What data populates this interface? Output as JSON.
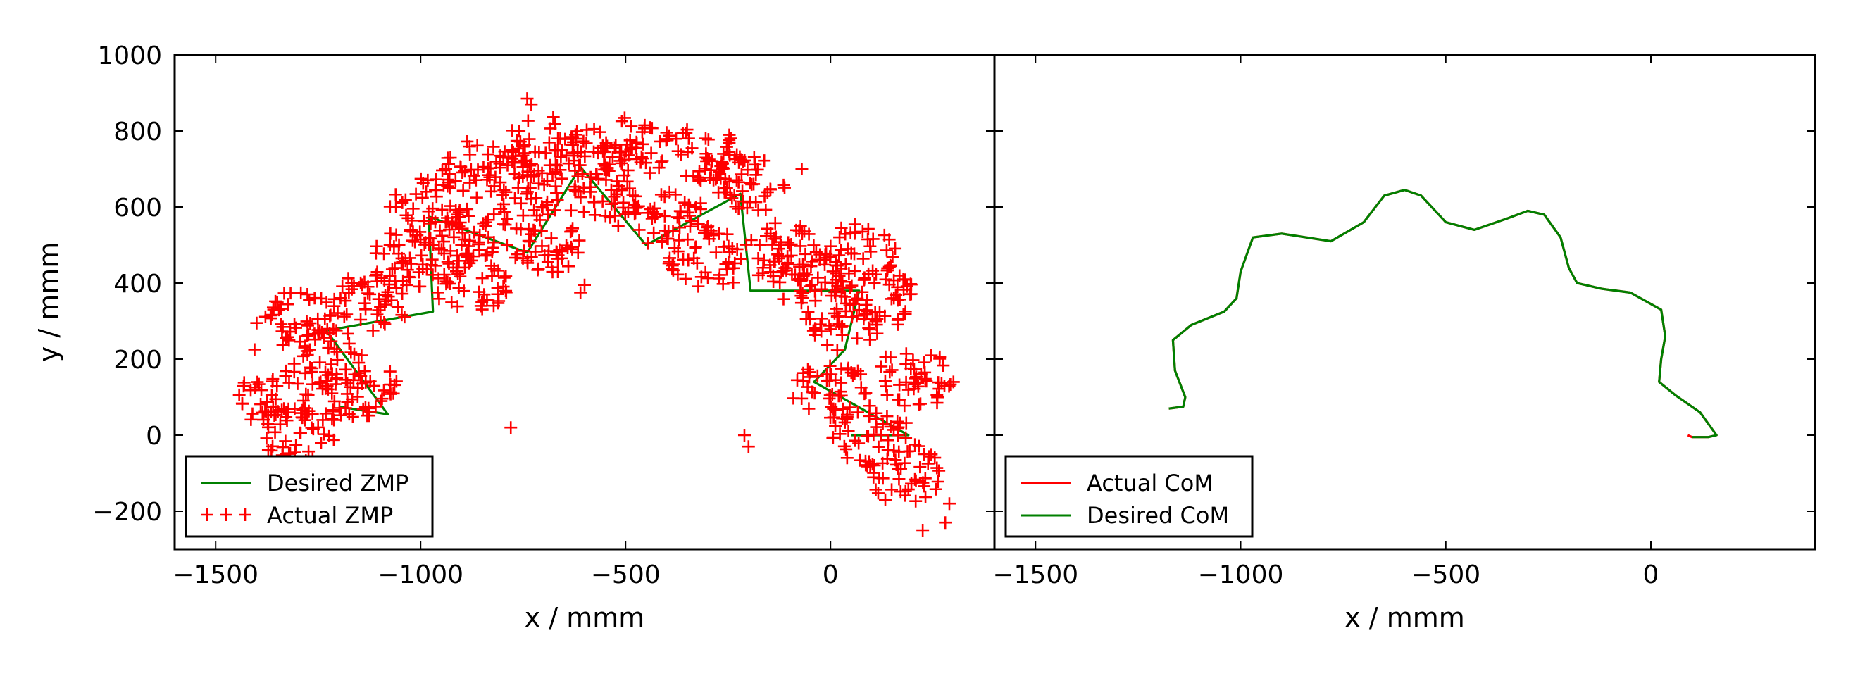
{
  "chart_data": [
    {
      "type": "scatter",
      "title": "",
      "xlabel": "x / mmm",
      "ylabel": "y / mmm",
      "xlim": [
        -1600,
        400
      ],
      "ylim": [
        -300,
        1000
      ],
      "xticks": [
        -1500,
        -1000,
        -500,
        0
      ],
      "xtick_labels": [
        "−1500",
        "−1000",
        "−500",
        "0"
      ],
      "yticks": [
        -200,
        0,
        200,
        400,
        600,
        800,
        1000
      ],
      "ytick_labels": [
        "−200",
        "0",
        "200",
        "400",
        "600",
        "800",
        "1000"
      ],
      "grid": false,
      "legend": "lower-left",
      "series": [
        {
          "name": "Desired ZMP",
          "kind": "line",
          "color": "#008000",
          "x": [
            -1200,
            -1080,
            -1230,
            -970,
            -980,
            -740,
            -610,
            -450,
            -220,
            -195,
            70,
            35,
            -40,
            190,
            180,
            50
          ],
          "y": [
            75,
            55,
            275,
            325,
            575,
            480,
            705,
            500,
            635,
            380,
            380,
            225,
            140,
            0,
            0,
            0
          ]
        },
        {
          "name": "Actual ZMP",
          "kind": "scatter",
          "marker": "+",
          "color": "#ff0000",
          "cluster_centers": [
            [
              -1350,
              100
            ],
            [
              -1290,
              0
            ],
            [
              -1220,
              200
            ],
            [
              -1150,
              120
            ],
            [
              -1120,
              350
            ],
            [
              -1030,
              460
            ],
            [
              -980,
              600
            ],
            [
              -900,
              520
            ],
            [
              -860,
              700
            ],
            [
              -750,
              620
            ],
            [
              -700,
              760
            ],
            [
              -600,
              730
            ],
            [
              -550,
              620
            ],
            [
              -480,
              760
            ],
            [
              -380,
              560
            ],
            [
              -300,
              740
            ],
            [
              -200,
              660
            ],
            [
              -120,
              480
            ],
            [
              -60,
              420
            ],
            [
              30,
              300
            ],
            [
              70,
              480
            ],
            [
              120,
              360
            ],
            [
              0,
              120
            ],
            [
              100,
              0
            ],
            [
              180,
              -100
            ],
            [
              200,
              150
            ],
            [
              -300,
              460
            ],
            [
              -700,
              500
            ],
            [
              -880,
              400
            ],
            [
              -1300,
              300
            ]
          ],
          "outliers": [
            [
              -740,
              885
            ],
            [
              -730,
              870
            ],
            [
              -780,
              20
            ],
            [
              -1400,
              295
            ],
            [
              -1405,
              225
            ],
            [
              -210,
              0
            ],
            [
              -200,
              -30
            ],
            [
              290,
              -180
            ],
            [
              300,
              140
            ],
            [
              280,
              -230
            ],
            [
              260,
              85
            ],
            [
              -70,
              700
            ],
            [
              -610,
              375
            ],
            [
              -600,
              395
            ],
            [
              225,
              -250
            ]
          ]
        }
      ]
    },
    {
      "type": "line",
      "title": "",
      "xlabel": "x / mmm",
      "ylabel": "",
      "xlim": [
        -1600,
        400
      ],
      "ylim": [
        -300,
        1000
      ],
      "xticks": [
        -1500,
        -1000,
        -500,
        0
      ],
      "xtick_labels": [
        "−1500",
        "−1000",
        "−500",
        "0"
      ],
      "yticks": [
        -200,
        0,
        200,
        400,
        600,
        800,
        1000
      ],
      "grid": false,
      "legend": "lower-left",
      "series": [
        {
          "name": "Actual CoM",
          "kind": "line",
          "color": "#ff0000",
          "x": [
            -1175,
            -1140,
            -1135,
            -1160,
            -1165,
            -1120,
            -1040,
            -1010,
            -1000,
            -970,
            -900,
            -780,
            -700,
            -650,
            -600,
            -560,
            -500,
            -430,
            -350,
            -300,
            -260,
            -220,
            -200,
            -180,
            -120,
            -50,
            25,
            35,
            25,
            20,
            60,
            120,
            160,
            140,
            120,
            100,
            90
          ],
          "y": [
            70,
            75,
            100,
            170,
            250,
            290,
            325,
            360,
            430,
            520,
            530,
            510,
            560,
            630,
            645,
            630,
            560,
            540,
            570,
            590,
            580,
            520,
            440,
            400,
            385,
            375,
            330,
            260,
            200,
            140,
            105,
            60,
            0,
            -5,
            -5,
            -5,
            0
          ],
          "note": "nearly identical to desired CoM with a small tail at the end"
        },
        {
          "name": "Desired CoM",
          "kind": "line",
          "color": "#008000",
          "x": [
            -1175,
            -1140,
            -1135,
            -1160,
            -1165,
            -1120,
            -1040,
            -1010,
            -1000,
            -970,
            -900,
            -780,
            -700,
            -650,
            -600,
            -560,
            -500,
            -430,
            -350,
            -300,
            -260,
            -220,
            -200,
            -180,
            -120,
            -50,
            25,
            35,
            25,
            20,
            60,
            120,
            160,
            140,
            120,
            100
          ],
          "y": [
            70,
            75,
            100,
            170,
            250,
            290,
            325,
            360,
            430,
            520,
            530,
            510,
            560,
            630,
            645,
            630,
            560,
            540,
            570,
            590,
            580,
            520,
            440,
            400,
            385,
            375,
            330,
            260,
            200,
            140,
            105,
            60,
            0,
            -5,
            -5,
            -5
          ]
        }
      ]
    }
  ]
}
